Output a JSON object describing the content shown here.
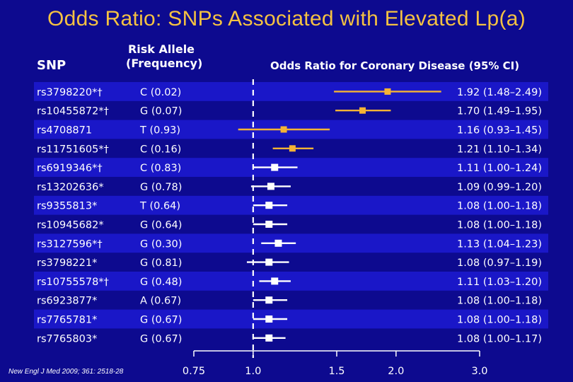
{
  "title": "Odds Ratio: SNPs Associated with Elevated Lp(a)",
  "headers": {
    "snp": "SNP",
    "risk_allele_line1": "Risk Allele",
    "risk_allele_line2": "(Frequency)",
    "odds_ratio": "Odds Ratio for Coronary Disease (95% CI)"
  },
  "citation": "New Engl J Med 2009; 361: 2518-28",
  "colors": {
    "background": "#0d0a8f",
    "row_band": "#1a17c8",
    "highlight": "#f5b335",
    "marker": "#ffffff",
    "title": "#f5c242"
  },
  "chart_data": {
    "type": "forest",
    "xscale": "log",
    "xlim": [
      0.75,
      3.0
    ],
    "xticks": [
      "0.75",
      "1.0",
      "1.5",
      "2.0",
      "3.0"
    ],
    "reference_line": 1.0,
    "rows": [
      {
        "snp": "rs3798220*†",
        "allele": "C (0.02)",
        "or": 1.92,
        "lo": 1.48,
        "hi": 2.49,
        "ci_text": "1.92 (1.48–2.49)",
        "highlight": true
      },
      {
        "snp": "rs10455872*†",
        "allele": "G (0.07)",
        "or": 1.7,
        "lo": 1.49,
        "hi": 1.95,
        "ci_text": "1.70 (1.49–1.95)",
        "highlight": true
      },
      {
        "snp": "rs4708871",
        "allele": "T (0.93)",
        "or": 1.16,
        "lo": 0.93,
        "hi": 1.45,
        "ci_text": "1.16 (0.93–1.45)",
        "highlight": true
      },
      {
        "snp": "rs11751605*†",
        "allele": "C (0.16)",
        "or": 1.21,
        "lo": 1.1,
        "hi": 1.34,
        "ci_text": "1.21 (1.10–1.34)",
        "highlight": true
      },
      {
        "snp": "rs6919346*†",
        "allele": "C (0.83)",
        "or": 1.11,
        "lo": 1.0,
        "hi": 1.24,
        "ci_text": "1.11 (1.00–1.24)",
        "highlight": false
      },
      {
        "snp": "rs13202636*",
        "allele": "G (0.78)",
        "or": 1.09,
        "lo": 0.99,
        "hi": 1.2,
        "ci_text": "1.09 (0.99–1.20)",
        "highlight": false
      },
      {
        "snp": "rs9355813*",
        "allele": "T (0.64)",
        "or": 1.08,
        "lo": 1.0,
        "hi": 1.18,
        "ci_text": "1.08 (1.00–1.18)",
        "highlight": false
      },
      {
        "snp": "rs10945682*",
        "allele": "G (0.64)",
        "or": 1.08,
        "lo": 1.0,
        "hi": 1.18,
        "ci_text": "1.08 (1.00–1.18)",
        "highlight": false
      },
      {
        "snp": "rs3127596*†",
        "allele": "G (0.30)",
        "or": 1.13,
        "lo": 1.04,
        "hi": 1.23,
        "ci_text": "1.13 (1.04–1.23)",
        "highlight": false
      },
      {
        "snp": "rs3798221*",
        "allele": "G (0.81)",
        "or": 1.08,
        "lo": 0.97,
        "hi": 1.19,
        "ci_text": "1.08 (0.97–1.19)",
        "highlight": false
      },
      {
        "snp": "rs10755578*†",
        "allele": "G (0.48)",
        "or": 1.11,
        "lo": 1.03,
        "hi": 1.2,
        "ci_text": "1.11 (1.03–1.20)",
        "highlight": false
      },
      {
        "snp": "rs6923877*",
        "allele": "A (0.67)",
        "or": 1.08,
        "lo": 1.0,
        "hi": 1.18,
        "ci_text": "1.08 (1.00–1.18)",
        "highlight": false
      },
      {
        "snp": "rs7765781*",
        "allele": "G (0.67)",
        "or": 1.08,
        "lo": 1.0,
        "hi": 1.18,
        "ci_text": "1.08 (1.00–1.18)",
        "highlight": false
      },
      {
        "snp": "rs7765803*",
        "allele": "G (0.67)",
        "or": 1.08,
        "lo": 1.0,
        "hi": 1.17,
        "ci_text": "1.08 (1.00–1.17)",
        "highlight": false
      }
    ]
  }
}
